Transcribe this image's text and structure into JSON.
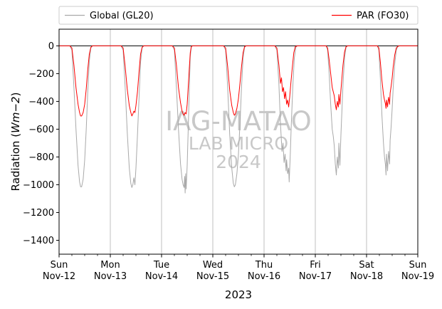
{
  "chart_data": {
    "type": "line",
    "title": "",
    "xlabel": "2023",
    "ylabel_prefix": "Radiation (",
    "ylabel_unit": "Wm−2",
    "ylabel_suffix": ")",
    "ylim": [
      -1500,
      120
    ],
    "yticks": [
      0,
      -200,
      -400,
      -600,
      -800,
      -1000,
      -1200,
      -1400
    ],
    "xlim_days": [
      0,
      7
    ],
    "xticks": [
      {
        "day": 0,
        "weekday": "Sun",
        "date": "Nov-12"
      },
      {
        "day": 1,
        "weekday": "Mon",
        "date": "Nov-13"
      },
      {
        "day": 2,
        "weekday": "Tue",
        "date": "Nov-14"
      },
      {
        "day": 3,
        "weekday": "Wed",
        "date": "Nov-15"
      },
      {
        "day": 4,
        "weekday": "Thu",
        "date": "Nov-16"
      },
      {
        "day": 5,
        "weekday": "Fri",
        "date": "Nov-17"
      },
      {
        "day": 6,
        "weekday": "Sat",
        "date": "Nov-18"
      },
      {
        "day": 7,
        "weekday": "Sun",
        "date": "Nov-19"
      }
    ],
    "minor_tick_step_days": 0.25,
    "grid": "x-major",
    "hline": 0,
    "legend": {
      "placement": "top-outside"
    },
    "series": [
      {
        "name": "Global (GL20)",
        "color": "#a9a9a9",
        "points": [
          [
            0.0,
            0
          ],
          [
            0.21,
            0
          ],
          [
            0.25,
            -30
          ],
          [
            0.29,
            -300
          ],
          [
            0.33,
            -600
          ],
          [
            0.37,
            -860
          ],
          [
            0.4,
            -980
          ],
          [
            0.42,
            -1015
          ],
          [
            0.44,
            -1015
          ],
          [
            0.47,
            -960
          ],
          [
            0.5,
            -820
          ],
          [
            0.53,
            -600
          ],
          [
            0.56,
            -330
          ],
          [
            0.59,
            -110
          ],
          [
            0.62,
            -15
          ],
          [
            0.65,
            0
          ],
          [
            1.21,
            0
          ],
          [
            1.25,
            -30
          ],
          [
            1.29,
            -300
          ],
          [
            1.33,
            -620
          ],
          [
            1.37,
            -880
          ],
          [
            1.4,
            -990
          ],
          [
            1.42,
            -1020
          ],
          [
            1.44,
            -1000
          ],
          [
            1.46,
            -950
          ],
          [
            1.48,
            -1000
          ],
          [
            1.5,
            -880
          ],
          [
            1.53,
            -640
          ],
          [
            1.56,
            -380
          ],
          [
            1.59,
            -120
          ],
          [
            1.62,
            -15
          ],
          [
            1.65,
            0
          ],
          [
            2.21,
            0
          ],
          [
            2.25,
            -30
          ],
          [
            2.29,
            -300
          ],
          [
            2.33,
            -600
          ],
          [
            2.37,
            -850
          ],
          [
            2.4,
            -960
          ],
          [
            2.42,
            -1000
          ],
          [
            2.44,
            -1020
          ],
          [
            2.45,
            -940
          ],
          [
            2.46,
            -1060
          ],
          [
            2.47,
            -920
          ],
          [
            2.48,
            -1030
          ],
          [
            2.5,
            -860
          ],
          [
            2.52,
            -600
          ],
          [
            2.54,
            -330
          ],
          [
            2.56,
            -80
          ],
          [
            2.58,
            -10
          ],
          [
            2.6,
            0
          ],
          [
            3.21,
            0
          ],
          [
            3.25,
            -30
          ],
          [
            3.29,
            -300
          ],
          [
            3.33,
            -640
          ],
          [
            3.37,
            -880
          ],
          [
            3.4,
            -990
          ],
          [
            3.42,
            -1015
          ],
          [
            3.44,
            -1000
          ],
          [
            3.47,
            -920
          ],
          [
            3.5,
            -780
          ],
          [
            3.53,
            -560
          ],
          [
            3.56,
            -300
          ],
          [
            3.59,
            -90
          ],
          [
            3.62,
            -10
          ],
          [
            3.65,
            0
          ],
          [
            4.21,
            0
          ],
          [
            4.25,
            -30
          ],
          [
            4.29,
            -280
          ],
          [
            4.32,
            -560
          ],
          [
            4.35,
            -760
          ],
          [
            4.37,
            -700
          ],
          [
            4.39,
            -840
          ],
          [
            4.41,
            -780
          ],
          [
            4.43,
            -900
          ],
          [
            4.44,
            -820
          ],
          [
            4.46,
            -920
          ],
          [
            4.48,
            -880
          ],
          [
            4.49,
            -980
          ],
          [
            4.51,
            -800
          ],
          [
            4.53,
            -580
          ],
          [
            4.56,
            -300
          ],
          [
            4.59,
            -90
          ],
          [
            4.62,
            -10
          ],
          [
            4.65,
            0
          ],
          [
            5.21,
            0
          ],
          [
            5.24,
            -30
          ],
          [
            5.27,
            -200
          ],
          [
            5.3,
            -420
          ],
          [
            5.33,
            -600
          ],
          [
            5.35,
            -650
          ],
          [
            5.37,
            -720
          ],
          [
            5.39,
            -850
          ],
          [
            5.41,
            -930
          ],
          [
            5.43,
            -800
          ],
          [
            5.45,
            -880
          ],
          [
            5.46,
            -700
          ],
          [
            5.48,
            -860
          ],
          [
            5.5,
            -640
          ],
          [
            5.52,
            -460
          ],
          [
            5.54,
            -280
          ],
          [
            5.57,
            -90
          ],
          [
            5.6,
            -10
          ],
          [
            5.63,
            0
          ],
          [
            6.21,
            0
          ],
          [
            6.24,
            -30
          ],
          [
            6.27,
            -240
          ],
          [
            6.3,
            -500
          ],
          [
            6.33,
            -700
          ],
          [
            6.35,
            -800
          ],
          [
            6.37,
            -860
          ],
          [
            6.38,
            -930
          ],
          [
            6.39,
            -780
          ],
          [
            6.41,
            -900
          ],
          [
            6.42,
            -820
          ],
          [
            6.43,
            -760
          ],
          [
            6.45,
            -850
          ],
          [
            6.46,
            -680
          ],
          [
            6.48,
            -580
          ],
          [
            6.5,
            -450
          ],
          [
            6.52,
            -300
          ],
          [
            6.55,
            -130
          ],
          [
            6.58,
            -30
          ],
          [
            6.61,
            -5
          ],
          [
            6.64,
            0
          ],
          [
            7.0,
            0
          ]
        ]
      },
      {
        "name": "PAR (FO30)",
        "color": "#ff0000",
        "points": [
          [
            0.0,
            0
          ],
          [
            0.21,
            0
          ],
          [
            0.25,
            -15
          ],
          [
            0.29,
            -140
          ],
          [
            0.33,
            -300
          ],
          [
            0.37,
            -420
          ],
          [
            0.4,
            -480
          ],
          [
            0.42,
            -505
          ],
          [
            0.44,
            -505
          ],
          [
            0.47,
            -480
          ],
          [
            0.5,
            -420
          ],
          [
            0.53,
            -310
          ],
          [
            0.56,
            -170
          ],
          [
            0.59,
            -60
          ],
          [
            0.62,
            -10
          ],
          [
            0.65,
            0
          ],
          [
            1.21,
            0
          ],
          [
            1.25,
            -15
          ],
          [
            1.29,
            -150
          ],
          [
            1.33,
            -310
          ],
          [
            1.37,
            -430
          ],
          [
            1.4,
            -480
          ],
          [
            1.42,
            -505
          ],
          [
            1.44,
            -490
          ],
          [
            1.46,
            -470
          ],
          [
            1.48,
            -480
          ],
          [
            1.5,
            -430
          ],
          [
            1.53,
            -330
          ],
          [
            1.56,
            -190
          ],
          [
            1.59,
            -60
          ],
          [
            1.62,
            -10
          ],
          [
            1.65,
            0
          ],
          [
            2.21,
            0
          ],
          [
            2.25,
            -15
          ],
          [
            2.29,
            -140
          ],
          [
            2.33,
            -300
          ],
          [
            2.37,
            -410
          ],
          [
            2.4,
            -470
          ],
          [
            2.42,
            -490
          ],
          [
            2.44,
            -500
          ],
          [
            2.46,
            -480
          ],
          [
            2.48,
            -490
          ],
          [
            2.5,
            -420
          ],
          [
            2.52,
            -300
          ],
          [
            2.54,
            -170
          ],
          [
            2.56,
            -50
          ],
          [
            2.58,
            -5
          ],
          [
            2.6,
            0
          ],
          [
            3.21,
            0
          ],
          [
            3.25,
            -15
          ],
          [
            3.29,
            -150
          ],
          [
            3.33,
            -320
          ],
          [
            3.37,
            -430
          ],
          [
            3.4,
            -480
          ],
          [
            3.42,
            -500
          ],
          [
            3.44,
            -490
          ],
          [
            3.47,
            -450
          ],
          [
            3.5,
            -380
          ],
          [
            3.53,
            -270
          ],
          [
            3.56,
            -150
          ],
          [
            3.59,
            -50
          ],
          [
            3.62,
            -5
          ],
          [
            3.65,
            0
          ],
          [
            4.21,
            0
          ],
          [
            4.25,
            -15
          ],
          [
            4.29,
            -140
          ],
          [
            4.32,
            -270
          ],
          [
            4.34,
            -230
          ],
          [
            4.36,
            -330
          ],
          [
            4.38,
            -300
          ],
          [
            4.4,
            -380
          ],
          [
            4.42,
            -330
          ],
          [
            4.44,
            -420
          ],
          [
            4.46,
            -390
          ],
          [
            4.48,
            -440
          ],
          [
            4.5,
            -370
          ],
          [
            4.52,
            -280
          ],
          [
            4.55,
            -160
          ],
          [
            4.58,
            -50
          ],
          [
            4.61,
            -5
          ],
          [
            4.65,
            0
          ],
          [
            5.21,
            0
          ],
          [
            5.24,
            -15
          ],
          [
            5.27,
            -100
          ],
          [
            5.3,
            -200
          ],
          [
            5.33,
            -300
          ],
          [
            5.35,
            -330
          ],
          [
            5.37,
            -360
          ],
          [
            5.39,
            -420
          ],
          [
            5.41,
            -460
          ],
          [
            5.43,
            -400
          ],
          [
            5.45,
            -440
          ],
          [
            5.46,
            -350
          ],
          [
            5.48,
            -420
          ],
          [
            5.5,
            -320
          ],
          [
            5.52,
            -230
          ],
          [
            5.54,
            -140
          ],
          [
            5.57,
            -45
          ],
          [
            5.6,
            -5
          ],
          [
            5.63,
            0
          ],
          [
            6.21,
            0
          ],
          [
            6.24,
            -15
          ],
          [
            6.27,
            -120
          ],
          [
            6.3,
            -250
          ],
          [
            6.33,
            -350
          ],
          [
            6.35,
            -390
          ],
          [
            6.37,
            -420
          ],
          [
            6.38,
            -450
          ],
          [
            6.39,
            -390
          ],
          [
            6.41,
            -440
          ],
          [
            6.42,
            -400
          ],
          [
            6.43,
            -370
          ],
          [
            6.45,
            -420
          ],
          [
            6.46,
            -340
          ],
          [
            6.48,
            -290
          ],
          [
            6.5,
            -230
          ],
          [
            6.52,
            -150
          ],
          [
            6.55,
            -65
          ],
          [
            6.58,
            -15
          ],
          [
            6.61,
            -3
          ],
          [
            6.64,
            0
          ],
          [
            7.0,
            0
          ]
        ]
      }
    ],
    "watermark": [
      "IAG-MATAO",
      "LAB MICRO",
      "2024"
    ]
  }
}
